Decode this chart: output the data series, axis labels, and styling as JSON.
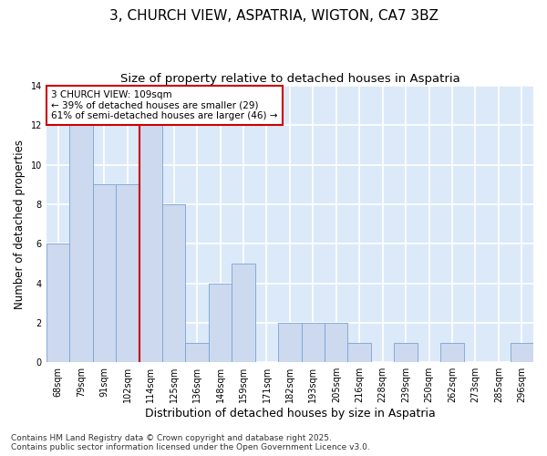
{
  "title": "3, CHURCH VIEW, ASPATRIA, WIGTON, CA7 3BZ",
  "subtitle": "Size of property relative to detached houses in Aspatria",
  "xlabel": "Distribution of detached houses by size in Aspatria",
  "ylabel": "Number of detached properties",
  "categories": [
    "68sqm",
    "79sqm",
    "91sqm",
    "102sqm",
    "114sqm",
    "125sqm",
    "136sqm",
    "148sqm",
    "159sqm",
    "171sqm",
    "182sqm",
    "193sqm",
    "205sqm",
    "216sqm",
    "228sqm",
    "239sqm",
    "250sqm",
    "262sqm",
    "273sqm",
    "285sqm",
    "296sqm"
  ],
  "values": [
    6,
    12,
    9,
    9,
    12,
    8,
    1,
    4,
    5,
    0,
    2,
    2,
    2,
    1,
    0,
    1,
    0,
    1,
    0,
    0,
    1
  ],
  "bar_color": "#ccd9ee",
  "bar_edge_color": "#7ba3d4",
  "red_line_x": 3.5,
  "annotation_text": "3 CHURCH VIEW: 109sqm\n← 39% of detached houses are smaller (29)\n61% of semi-detached houses are larger (46) →",
  "annotation_box_color": "#ffffff",
  "annotation_box_edge": "#cc0000",
  "ylim": [
    0,
    14
  ],
  "yticks": [
    0,
    2,
    4,
    6,
    8,
    10,
    12,
    14
  ],
  "footer": "Contains HM Land Registry data © Crown copyright and database right 2025.\nContains public sector information licensed under the Open Government Licence v3.0.",
  "fig_facecolor": "#ffffff",
  "plot_facecolor": "#dce9f8",
  "grid_color": "#ffffff",
  "title_fontsize": 11,
  "subtitle_fontsize": 9.5,
  "ylabel_fontsize": 8.5,
  "xlabel_fontsize": 9,
  "tick_fontsize": 7,
  "annotation_fontsize": 7.5,
  "footer_fontsize": 6.5
}
